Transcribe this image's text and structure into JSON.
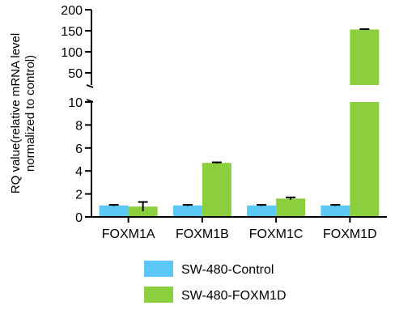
{
  "chart_data": {
    "type": "bar",
    "categories": [
      "FOXM1A",
      "FOXM1B",
      "FOXM1C",
      "FOXM1D"
    ],
    "ylabel_lines": [
      "RQ value(relative mRNA level",
      "normalized to control)"
    ],
    "series": [
      {
        "name": "SW-480-Control",
        "color": "#5bc8f5",
        "values": [
          1.0,
          1.0,
          1.0,
          1.0
        ],
        "errors": [
          0.05,
          0.05,
          0.05,
          0.05
        ]
      },
      {
        "name": "SW-480-FOXM1D",
        "color": "#8ccf3e",
        "values": [
          0.9,
          4.7,
          1.6,
          153
        ],
        "errors": [
          0.4,
          0.05,
          0.1,
          0.8
        ]
      }
    ],
    "y_axis_lower": {
      "range": [
        0,
        10
      ],
      "ticks": [
        "0",
        "2",
        "4",
        "6",
        "8",
        "10"
      ]
    },
    "y_axis_upper": {
      "range": [
        30,
        200
      ],
      "ticks": [
        "50",
        "100",
        "150",
        "200"
      ]
    },
    "axis_break": true,
    "legend_position": "bottom-center",
    "grid": false
  }
}
